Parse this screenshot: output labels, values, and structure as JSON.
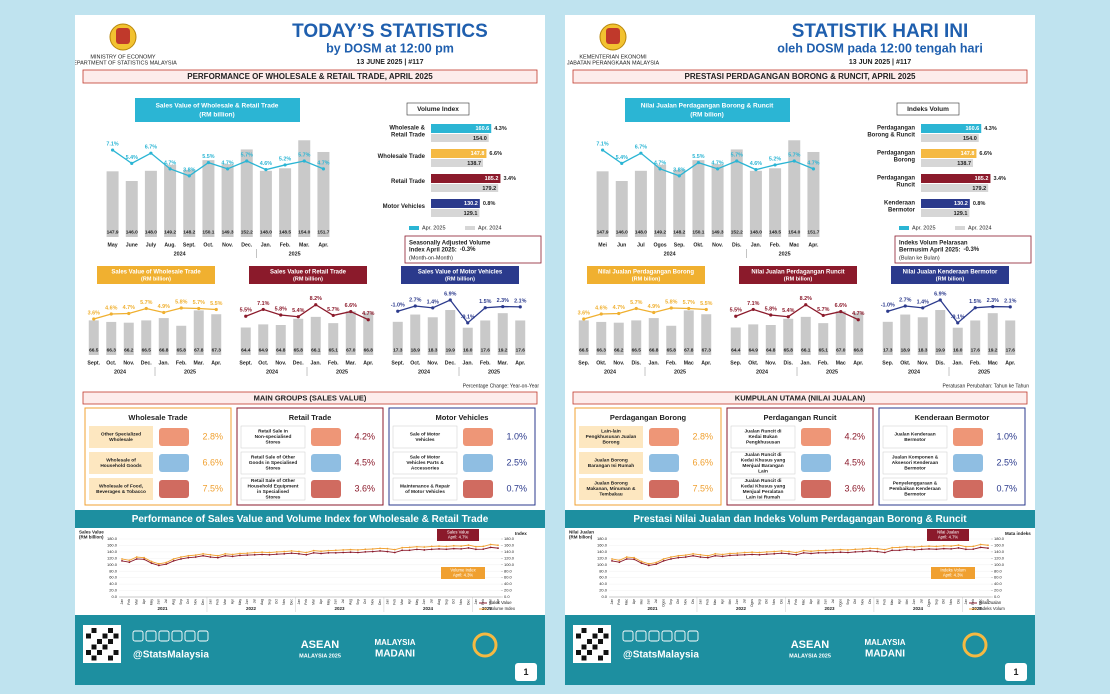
{
  "panels": [
    {
      "ministry": [
        "MINISTRY OF ECONOMY",
        "DEPARTMENT OF STATISTICS MALAYSIA"
      ],
      "title": "TODAY’S STATISTICS",
      "subtitle": "by DOSM at 12:00 pm",
      "date": "13 JUNE 2025  |  #117",
      "banner": "PERFORMANCE OF WHOLESALE & RETAIL TRADE, APRIL 2025",
      "sales_title": "Sales Value of Wholesale & Retail Trade",
      "unit": "(RM billion)",
      "months": [
        "May",
        "June",
        "July",
        "Aug.",
        "Sept.",
        "Oct.",
        "Nov.",
        "Dec.",
        "Jan.",
        "Feb.",
        "Mar.",
        "Apr."
      ],
      "years": [
        "2024",
        "2025"
      ],
      "vi_title": "Volume Index",
      "vi_categories": [
        "Wholesale & Retail Trade",
        "Wholesale Trade",
        "Retail Trade",
        "Motor Vehicles"
      ],
      "vi_legend": [
        "Apr. 2025",
        "Apr. 2024"
      ],
      "sa_text": "Seasonally Adjusted Volume Index April 2025:",
      "sa_note": "(Month-on-Month)",
      "segment_titles": [
        "Sales Value of Wholesale Trade",
        "Sales Value of Retail Trade",
        "Sales Value of Motor Vehicles"
      ],
      "segment_months": [
        "Sept.",
        "Oct.",
        "Nov.",
        "Dec.",
        "Jan.",
        "Feb.",
        "Mar.",
        "Apr."
      ],
      "pct_note": "Percentage Change: Year-on-Year",
      "groups_banner": "MAIN GROUPS (SALES VALUE)",
      "groups": [
        {
          "title": "Wholesale Trade",
          "items": [
            "Other Specialized Wholesale",
            "Wholesale of Household Goods",
            "Wholesale of Food, Beverages & Tobacco"
          ]
        },
        {
          "title": "Retail Trade",
          "items": [
            "Retail Sale in Non-specialised Stores",
            "Retail Sale of Other Goods in Specialised Stores",
            "Retail Sale of Other Household Equipment in Specialised Stores"
          ]
        },
        {
          "title": "Motor Vehicles",
          "items": [
            "Sale of Motor Vehicles",
            "Sale of Motor Vehicles Parts & Accessories",
            "Maintenance & Repair of Motor Vehicles"
          ]
        }
      ],
      "trend_title": "Performance of Sales Value and Volume Index for Wholesale & Retail Trade",
      "trend_y_label": "Sales Value (RM billion)",
      "trend_y2_label": "Index",
      "trend_notes": [
        "Sales Value April: 4.7%",
        "Volume Index April: 4.3%"
      ],
      "trend_legend": [
        "Sales Value",
        "Volume Index"
      ],
      "trend_months": [
        "Jan",
        "Feb",
        "Mar",
        "Apr",
        "May",
        "Jun",
        "Jul",
        "Aug",
        "Sep",
        "Oct",
        "Nov",
        "Dec"
      ],
      "trend_years": [
        "2021",
        "2022",
        "2023",
        "2024",
        "2025"
      ]
    },
    {
      "ministry": [
        "KEMENTERIAN EKONOMI",
        "JABATAN PERANGKAAN MALAYSIA"
      ],
      "title": "STATISTIK HARI INI",
      "subtitle": "oleh DOSM pada 12:00 tengah hari",
      "date": "13 JUN 2025  |  #117",
      "banner": "PRESTASI PERDAGANGAN BORONG & RUNCIT, APRIL 2025",
      "sales_title": "Nilai Jualan Perdagangan Borong & Runcit",
      "unit": "(RM bilion)",
      "months": [
        "Mei",
        "Jun",
        "Jul",
        "Ogos",
        "Sep.",
        "Okt.",
        "Nov.",
        "Dis.",
        "Jan.",
        "Feb.",
        "Mac",
        "Apr."
      ],
      "years": [
        "2024",
        "2025"
      ],
      "vi_title": "Indeks Volum",
      "vi_categories": [
        "Perdagangan Borong & Runcit",
        "Perdagangan Borong",
        "Perdagangan Runcit",
        "Kenderaan Bermotor"
      ],
      "vi_legend": [
        "Apr. 2025",
        "Apr. 2024"
      ],
      "sa_text": "Indeks Volum Pelarasan Bermusim April 2025:",
      "sa_note": "(Bulan ke Bulan)",
      "segment_titles": [
        "Nilai Jualan Perdagangan Borong",
        "Nilai Jualan Perdagangan Runcit",
        "Nilai Jualan Kenderaan Bermotor"
      ],
      "segment_months": [
        "Sep.",
        "Okt.",
        "Nov.",
        "Dis.",
        "Jan.",
        "Feb.",
        "Mac",
        "Apr."
      ],
      "pct_note": "Peratusan Perubahan: Tahun ke Tahun",
      "groups_banner": "KUMPULAN UTAMA (NILAI JUALAN)",
      "groups": [
        {
          "title": "Perdagangan Borong",
          "items": [
            "Lain-lain Pengkhususan Jualan Borong",
            "Jualan Borong Barangan Isi Rumah",
            "Jualan Borong Makanan, Minuman & Tembakau"
          ]
        },
        {
          "title": "Perdagangan Runcit",
          "items": [
            "Jualan Runcit di Kedai Bukan Pengkhususan",
            "Jualan Runcit di Kedai Khusus yang Menjual Barangan Lain",
            "Jualan Runcit di Kedai Khusus yang Menjual Peralatan Lain Isi Rumah"
          ]
        },
        {
          "title": "Kenderaan Bermotor",
          "items": [
            "Jualan Kenderaan Bermotor",
            "Jualan Komponen & Aksesori Kenderaan Bermotor",
            "Penyelenggaraan & Pembaikan Kenderaan Bermotor"
          ]
        }
      ],
      "trend_title": "Prestasi Nilai Jualan dan Indeks Volum Perdagangan Borong & Runcit",
      "trend_y_label": "Nilai Jualan (RM bilion)",
      "trend_y2_label": "Mata indeks",
      "trend_notes": [
        "Nilai Jualan April: 4.7%",
        "Indeks Volum April: 4.3%"
      ],
      "trend_legend": [
        "Nilai Jualan",
        "Indeks Volum"
      ],
      "trend_months": [
        "Jan",
        "Feb",
        "Mac",
        "Apr",
        "Mei",
        "Jun",
        "Jul",
        "Ogos",
        "Sep",
        "Okt",
        "Nov",
        "Dis"
      ],
      "trend_years": [
        "2021",
        "2022",
        "2023",
        "2024",
        "2025"
      ]
    }
  ],
  "figures": {
    "sales": {
      "values": [
        147.9,
        146.0,
        148.0,
        149.2,
        148.2,
        150.1,
        149.3,
        152.2,
        148.0,
        148.5,
        154.0,
        151.7
      ],
      "value_labels": [
        "147.9",
        "146.0",
        "148.0",
        "149.2",
        "148.2",
        "150.1",
        "149.3",
        "152.2",
        "148.0",
        "148.5",
        "154.0",
        "151.7"
      ],
      "ylim": [
        135,
        157
      ],
      "growth": [
        7.1,
        5.4,
        6.7,
        4.7,
        3.8,
        5.5,
        4.7,
        5.7,
        4.6,
        5.2,
        5.7,
        4.7
      ],
      "growth_labels": [
        "7.1%",
        "5.4%",
        "6.7%",
        "4.7%",
        "3.8%",
        "5.5%",
        "4.7%",
        "5.7%",
        "4.6%",
        "5.2%",
        "5.7%",
        "4.7%"
      ],
      "growth_ylim": [
        2,
        8
      ],
      "color": "#2bb5d4"
    },
    "volume_index": {
      "apr2025": [
        160.6,
        147.8,
        185.2,
        130.2
      ],
      "apr2025_labels": [
        "160.6",
        "147.8",
        "185.2",
        "130.2"
      ],
      "apr2024": [
        154.0,
        138.7,
        179.2,
        129.1
      ],
      "apr2024_labels": [
        "154.0",
        "138.7",
        "179.2",
        "129.1"
      ],
      "growth": [
        4.3,
        6.6,
        3.4,
        0.8
      ],
      "growth_labels": [
        "4.3%",
        "6.6%",
        "3.4%",
        "0.8%"
      ],
      "colors": [
        "#2bb5d4",
        "#f5b942",
        "#8b1a2b",
        "#2b3a8c"
      ],
      "color_2024": "#d6d6d6",
      "xlim": [
        0,
        200
      ]
    },
    "sa": {
      "value": -0.3,
      "label": "-0.3%"
    },
    "segments": [
      {
        "values": [
          66.5,
          66.3,
          66.2,
          66.5,
          66.8,
          65.8,
          67.8,
          67.3
        ],
        "value_labels": [
          "66.5",
          "66.3",
          "66.2",
          "66.5",
          "66.8",
          "65.8",
          "67.8",
          "67.3"
        ],
        "ylim": [
          62,
          68.5
        ],
        "growth": [
          3.6,
          4.6,
          4.7,
          5.7,
          4.9,
          5.8,
          5.7,
          5.5
        ],
        "growth_labels": [
          "3.6%",
          "4.6%",
          "4.7%",
          "5.7%",
          "4.9%",
          "5.8%",
          "5.7%",
          "5.5%"
        ],
        "growth_ylim": [
          2,
          8
        ],
        "color": "#f0b030"
      },
      {
        "values": [
          64.4,
          64.9,
          64.8,
          65.8,
          66.1,
          65.1,
          67.0,
          66.8
        ],
        "value_labels": [
          "64.4",
          "64.9",
          "64.8",
          "65.8",
          "66.1",
          "65.1",
          "67.0",
          "66.8"
        ],
        "ylim": [
          60,
          68
        ],
        "growth": [
          5.5,
          7.1,
          5.8,
          5.4,
          8.2,
          5.7,
          6.6,
          4.7
        ],
        "growth_labels": [
          "5.5%",
          "7.1%",
          "5.8%",
          "5.4%",
          "8.2%",
          "5.7%",
          "6.6%",
          "4.7%"
        ],
        "growth_ylim": [
          3,
          10
        ],
        "color": "#8b1a2b"
      },
      {
        "values": [
          17.3,
          18.9,
          18.3,
          19.9,
          16.0,
          17.6,
          19.2,
          17.6
        ],
        "value_labels": [
          "17.3",
          "18.9",
          "18.3",
          "19.9",
          "16.0",
          "17.6",
          "19.2",
          "17.6"
        ],
        "ylim": [
          10,
          21
        ],
        "growth": [
          -1.0,
          2.7,
          1.4,
          6.9,
          -9.1,
          1.5,
          2.3,
          2.1
        ],
        "growth_labels": [
          "-1.0%",
          "2.7%",
          "1.4%",
          "6.9%",
          "-9.1%",
          "1.5%",
          "2.3%",
          "2.1%"
        ],
        "growth_ylim": [
          -12,
          9
        ],
        "color": "#2b3a8c"
      }
    ],
    "groups": [
      [
        {
          "value": 2.8,
          "label": "2.8%"
        },
        {
          "value": 6.6,
          "label": "6.6%"
        },
        {
          "value": 7.5,
          "label": "7.5%"
        }
      ],
      [
        {
          "value": 4.2,
          "label": "4.2%"
        },
        {
          "value": 4.5,
          "label": "4.5%"
        },
        {
          "value": 3.6,
          "label": "3.6%"
        }
      ],
      [
        {
          "value": 1.0,
          "label": "1.0%"
        },
        {
          "value": 2.5,
          "label": "2.5%"
        },
        {
          "value": 0.7,
          "label": "0.7%"
        }
      ]
    ],
    "group_colors": [
      "#f0a030",
      "#8b1a2b",
      "#2b3a8c"
    ],
    "trend": {
      "sales": [
        112,
        108,
        118,
        117,
        105,
        98,
        102,
        112,
        118,
        122,
        124,
        128,
        124,
        122,
        128,
        126,
        129,
        130,
        131,
        132,
        131,
        133,
        134,
        136,
        134,
        131,
        137,
        135,
        137,
        137,
        138,
        139,
        138,
        140,
        141,
        143,
        141,
        138,
        145,
        145,
        147.9,
        146.0,
        148.0,
        149.2,
        148.2,
        150.1,
        149.3,
        152.2,
        148.0,
        148.5,
        154.0,
        151.7
      ],
      "volume": [
        118,
        114,
        124,
        122,
        110,
        103,
        107,
        118,
        124,
        128,
        130,
        134,
        131,
        128,
        134,
        132,
        135,
        136,
        138,
        139,
        138,
        140,
        141,
        143,
        141,
        138,
        144,
        142,
        144,
        145,
        146,
        147,
        146,
        148,
        149,
        151,
        150,
        147,
        153,
        154.0,
        156,
        155,
        157,
        158,
        157,
        159,
        158,
        161,
        156,
        157,
        163,
        160.6
      ],
      "ylim": [
        0,
        180
      ],
      "yticks": [
        {
          "value": 0,
          "label": "0.0"
        },
        {
          "value": 20,
          "label": "20.0"
        },
        {
          "value": 40,
          "label": "40.0"
        },
        {
          "value": 60,
          "label": "60.0"
        },
        {
          "value": 80,
          "label": "80.0"
        },
        {
          "value": 100,
          "label": "100.0"
        },
        {
          "value": 120,
          "label": "120.0"
        },
        {
          "value": 140,
          "label": "140.0"
        },
        {
          "value": 160,
          "label": "160.0"
        },
        {
          "value": 180,
          "label": "180.0"
        }
      ],
      "y2lim": [
        0,
        180
      ],
      "y2ticks": [
        {
          "value": 0,
          "label": "0.0"
        },
        {
          "value": 20,
          "label": "20.0"
        },
        {
          "value": 40,
          "label": "40.0"
        },
        {
          "value": 60,
          "label": "60.0"
        },
        {
          "value": 80,
          "label": "80.0"
        },
        {
          "value": 100,
          "label": "100.0"
        },
        {
          "value": 120,
          "label": "120.0"
        },
        {
          "value": 140,
          "label": "140.0"
        },
        {
          "value": 160,
          "label": "160.0"
        },
        {
          "value": 180,
          "label": "180.0"
        }
      ],
      "sales_color": "#8b1a2b",
      "volume_color": "#f0a030"
    }
  },
  "footer": {
    "handle": "@StatsMalaysia",
    "page": "1",
    "logos": [
      "ASEAN",
      "MALAYSIA 2025",
      "MALAYSIA",
      "MADANI"
    ]
  }
}
